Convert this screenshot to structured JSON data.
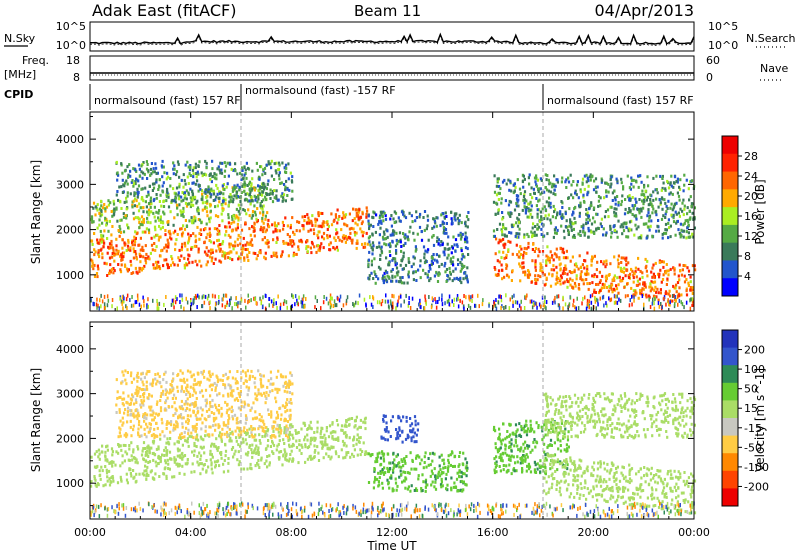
{
  "header": {
    "station": "Adak East (fitACF)",
    "beam": "Beam 11",
    "date": "04/Apr/2013"
  },
  "noise_panel": {
    "left_label": "N.Sky",
    "right_label": "N.Search",
    "left_ticks": [
      "10^5",
      "10^0"
    ],
    "right_ticks": [
      "10^5",
      "10^0"
    ]
  },
  "freq_panel": {
    "left_label_1": "Freq.",
    "left_label_2": "[MHz]",
    "left_ticks": [
      "18",
      "8"
    ],
    "right_label": "Nave",
    "right_ticks": [
      "60",
      "0"
    ]
  },
  "cpid": {
    "label": "CPID",
    "segments": [
      {
        "text": "normalsound (fast) 157 RF",
        "start_hour": 0
      },
      {
        "text": "normalsound (fast) -157 RF",
        "start_hour": 6
      },
      {
        "text": "normalsound (fast) 157 RF",
        "start_hour": 18
      }
    ]
  },
  "x_axis": {
    "label": "Time UT",
    "ticks": [
      "00:00",
      "04:00",
      "08:00",
      "12:00",
      "16:00",
      "20:00",
      "00:00"
    ]
  },
  "chart_data": [
    {
      "type": "heatmap",
      "title": "Power",
      "ylabel": "Slant Range [km]",
      "xlabel": "Time UT",
      "xlim": [
        0,
        24
      ],
      "ylim": [
        200,
        4600
      ],
      "y_ticks": [
        1000,
        2000,
        3000,
        4000
      ],
      "colorbar": {
        "label": "Power [dB]",
        "ticks": [
          "4",
          "8",
          "12",
          "16",
          "20",
          "24",
          "28"
        ],
        "colors": [
          "#0000ff",
          "#2255cc",
          "#3a7a5a",
          "#55aa44",
          "#aaee22",
          "#ffaa00",
          "#ff6600",
          "#ff2200",
          "#ee0000"
        ]
      },
      "regions": [
        {
          "name": "main_band",
          "hours": [
            0,
            11
          ],
          "range_km": [
            900,
            1800
          ],
          "power_db": 24
        },
        {
          "name": "upper_band",
          "hours": [
            0,
            7
          ],
          "range_km": [
            1800,
            2600
          ],
          "power_db": 16
        },
        {
          "name": "high_scatter",
          "hours": [
            1,
            8
          ],
          "range_km": [
            2600,
            3500
          ],
          "power_db": 12
        },
        {
          "name": "midday_patch",
          "hours": [
            11,
            15
          ],
          "range_km": [
            800,
            2400
          ],
          "power_db": 10
        },
        {
          "name": "evening_band",
          "hours": [
            16,
            24
          ],
          "range_km": [
            900,
            1800
          ],
          "power_db": 24
        },
        {
          "name": "evening_upper",
          "hours": [
            16,
            24
          ],
          "range_km": [
            1800,
            3200
          ],
          "power_db": 12
        }
      ]
    },
    {
      "type": "heatmap",
      "title": "Velocity",
      "ylabel": "Slant Range [km]",
      "xlabel": "Time UT",
      "xlim": [
        0,
        24
      ],
      "ylim": [
        200,
        4600
      ],
      "y_ticks": [
        1000,
        2000,
        3000,
        4000
      ],
      "colorbar": {
        "label": "Velocity [m s^-1]",
        "ticks": [
          "200",
          "100",
          "50",
          "15",
          "-15",
          "-50",
          "-100",
          "-200"
        ],
        "colors": [
          "#2233bb",
          "#3355cc",
          "#2e8b57",
          "#66cc33",
          "#aadd66",
          "#c8c8c0",
          "#ffcc44",
          "#ff8800",
          "#ff4400",
          "#ee0000"
        ]
      },
      "regions": [
        {
          "name": "ground_scatter",
          "hours": [
            0,
            11
          ],
          "range_km": [
            900,
            1800
          ],
          "velocity": 0
        },
        {
          "name": "upper_orange",
          "hours": [
            1,
            8
          ],
          "range_km": [
            2000,
            3500
          ],
          "velocity": -60
        },
        {
          "name": "midday_blue",
          "hours": [
            11.5,
            13
          ],
          "range_km": [
            1900,
            2500
          ],
          "velocity": 150
        },
        {
          "name": "midday_green",
          "hours": [
            11,
            15
          ],
          "range_km": [
            800,
            1700
          ],
          "velocity": 40
        },
        {
          "name": "evening_green",
          "hours": [
            16,
            19
          ],
          "range_km": [
            1200,
            2400
          ],
          "velocity": 40
        },
        {
          "name": "evening_ground",
          "hours": [
            18,
            24
          ],
          "range_km": [
            900,
            1800
          ],
          "velocity": 0
        },
        {
          "name": "evening_upper",
          "hours": [
            18,
            24
          ],
          "range_km": [
            2000,
            3000
          ],
          "velocity": 0
        }
      ]
    }
  ]
}
